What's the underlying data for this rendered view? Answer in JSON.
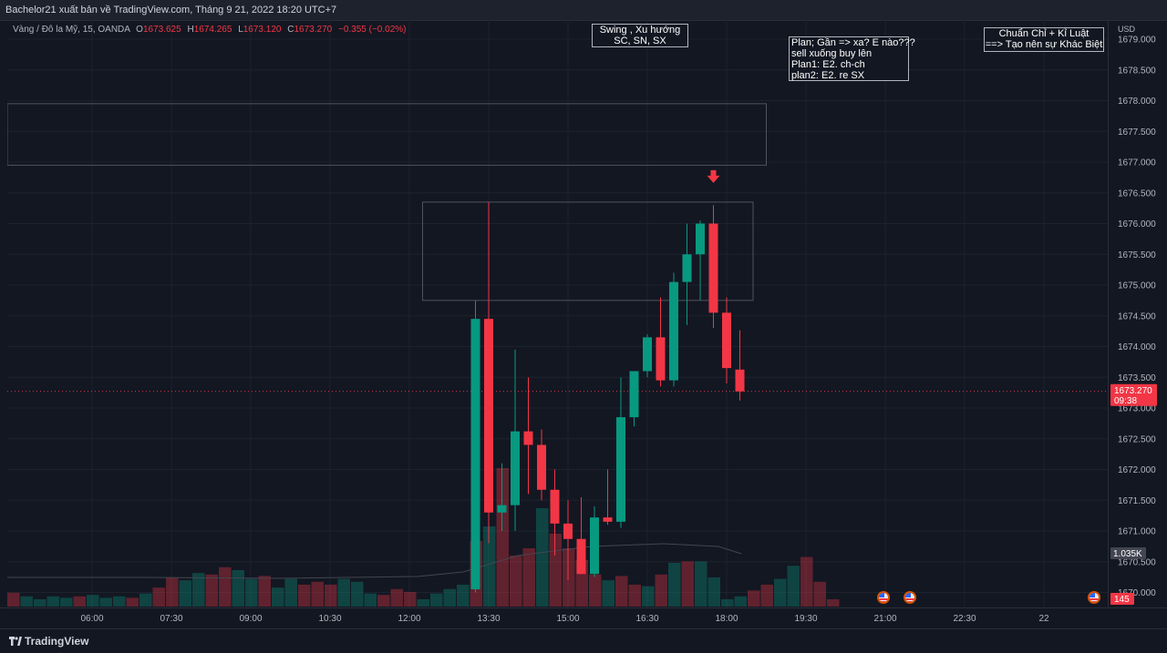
{
  "header": {
    "text": "Bachelor21 xuất bản về TradingView.com, Tháng 9 21, 2022 18:20 UTC+7"
  },
  "legend": {
    "symbol": "Vàng / Đô la Mỹ, 15, OANDA",
    "o_label": "O",
    "o_value": "1673.625",
    "h_label": "H",
    "h_value": "1674.265",
    "l_label": "L",
    "l_value": "1673.120",
    "c_label": "C",
    "c_value": "1673.270",
    "change": "−0.355 (−0.02%)"
  },
  "notes": {
    "swing": [
      "Swing , Xu hướng",
      "SC,  SN,  SX"
    ],
    "plan": [
      "Plan; Gần => xa? E nào???",
      "sell xuống buy lên",
      "Plan1: E2. ch-ch",
      "plan2:  E2. re SX"
    ],
    "discipline": [
      "Chuẩn Chỉ + Kỉ Luật",
      "==> Tạo nên sự Khác Biệt"
    ]
  },
  "axis": {
    "currency": "USD",
    "price_ticks": [
      "1679.000",
      "1678.500",
      "1678.000",
      "1677.500",
      "1677.000",
      "1676.500",
      "1676.000",
      "1675.500",
      "1675.000",
      "1674.500",
      "1674.000",
      "1673.500",
      "1673.000",
      "1672.500",
      "1672.000",
      "1671.500",
      "1671.000",
      "1670.500",
      "1670.000"
    ],
    "time_ticks": [
      "06:00",
      "07:30",
      "09:00",
      "10:30",
      "12:00",
      "13:30",
      "15:00",
      "16:30",
      "18:00",
      "19:30",
      "21:00",
      "22:30",
      "22"
    ],
    "last_price": "1673.270",
    "countdown": "09:38",
    "volume_label": "1.035K",
    "events_count": "145"
  },
  "footer": {
    "brand": "TradingView"
  },
  "colors": {
    "up": "#089981",
    "down": "#f23645",
    "background": "#131722",
    "grid": "#1e222d"
  },
  "chart_data": {
    "type": "candlestick",
    "interval": "15",
    "ylim": [
      1670.0,
      1679.0
    ],
    "candles": [
      {
        "t": "13:15",
        "o": 1670.05,
        "h": 1674.75,
        "l": 1670.0,
        "c": 1674.45
      },
      {
        "t": "13:30",
        "o": 1674.45,
        "h": 1676.35,
        "l": 1670.8,
        "c": 1671.3
      },
      {
        "t": "13:45",
        "o": 1671.3,
        "h": 1672.1,
        "l": 1671.0,
        "c": 1671.42
      },
      {
        "t": "14:00",
        "o": 1671.42,
        "h": 1673.95,
        "l": 1671.0,
        "c": 1672.62
      },
      {
        "t": "14:15",
        "o": 1672.62,
        "h": 1673.5,
        "l": 1671.6,
        "c": 1672.4
      },
      {
        "t": "14:30",
        "o": 1672.4,
        "h": 1672.65,
        "l": 1671.5,
        "c": 1671.67
      },
      {
        "t": "14:45",
        "o": 1671.67,
        "h": 1672.0,
        "l": 1670.6,
        "c": 1671.12
      },
      {
        "t": "15:00",
        "o": 1671.12,
        "h": 1671.5,
        "l": 1670.2,
        "c": 1670.87
      },
      {
        "t": "15:15",
        "o": 1670.87,
        "h": 1671.55,
        "l": 1670.3,
        "c": 1670.3
      },
      {
        "t": "15:30",
        "o": 1670.3,
        "h": 1671.4,
        "l": 1670.25,
        "c": 1671.22
      },
      {
        "t": "15:45",
        "o": 1671.22,
        "h": 1672.0,
        "l": 1671.1,
        "c": 1671.15
      },
      {
        "t": "16:00",
        "o": 1671.15,
        "h": 1673.5,
        "l": 1671.05,
        "c": 1672.85
      },
      {
        "t": "16:15",
        "o": 1672.85,
        "h": 1673.6,
        "l": 1672.7,
        "c": 1673.6
      },
      {
        "t": "16:30",
        "o": 1673.6,
        "h": 1674.2,
        "l": 1673.5,
        "c": 1674.15
      },
      {
        "t": "16:45",
        "o": 1674.15,
        "h": 1674.8,
        "l": 1673.35,
        "c": 1673.45
      },
      {
        "t": "17:00",
        "o": 1673.45,
        "h": 1675.2,
        "l": 1673.35,
        "c": 1675.05
      },
      {
        "t": "17:15",
        "o": 1675.05,
        "h": 1676.0,
        "l": 1674.35,
        "c": 1675.5
      },
      {
        "t": "17:30",
        "o": 1675.5,
        "h": 1676.05,
        "l": 1674.75,
        "c": 1676.0
      },
      {
        "t": "17:45",
        "o": 1676.0,
        "h": 1676.3,
        "l": 1674.3,
        "c": 1674.55
      },
      {
        "t": "18:00",
        "o": 1674.55,
        "h": 1674.8,
        "l": 1673.4,
        "c": 1673.65
      },
      {
        "t": "18:15",
        "o": 1673.625,
        "h": 1674.265,
        "l": 1673.12,
        "c": 1673.27
      }
    ],
    "volume": {
      "direction": [
        "d",
        "u",
        "u",
        "u",
        "u",
        "d",
        "u",
        "u",
        "u",
        "d",
        "u",
        "d",
        "d",
        "u",
        "u",
        "d",
        "d",
        "u",
        "u",
        "d",
        "u",
        "u",
        "d",
        "d",
        "d",
        "u",
        "u",
        "u",
        "d",
        "d",
        "d",
        "u",
        "u",
        "u",
        "u",
        "d",
        "u",
        "d",
        "d",
        "d",
        "u",
        "d",
        "d",
        "d",
        "d",
        "u",
        "d",
        "d",
        "u",
        "d",
        "u",
        "d",
        "u",
        "u",
        "u",
        "u",
        "d",
        "d",
        "u",
        "u",
        "d",
        "d",
        "d"
      ],
      "values": [
        19,
        14,
        10,
        14,
        12,
        14,
        16,
        12,
        14,
        12,
        18,
        26,
        40,
        36,
        46,
        44,
        54,
        50,
        38,
        42,
        26,
        38,
        30,
        34,
        30,
        38,
        34,
        18,
        16,
        24,
        20,
        10,
        18,
        24,
        30,
        90,
        110,
        190,
        70,
        80,
        135,
        100,
        80,
        64,
        44,
        36,
        42,
        30,
        28,
        44,
        60,
        62,
        62,
        40,
        10,
        14,
        22,
        30,
        38,
        56,
        68,
        34,
        10
      ]
    },
    "volume_ylim": [
      0,
      200
    ],
    "price_line": 1673.27,
    "zones": [
      {
        "x0": "00:45",
        "x1": "18:45",
        "y_low": 1676.95,
        "y_high": 1677.95
      },
      {
        "x0": "12:15",
        "x1": "18:30",
        "y_low": 1674.75,
        "y_high": 1676.35
      }
    ],
    "marker": {
      "t": "17:45",
      "y": 1676.75,
      "direction": "down"
    }
  }
}
